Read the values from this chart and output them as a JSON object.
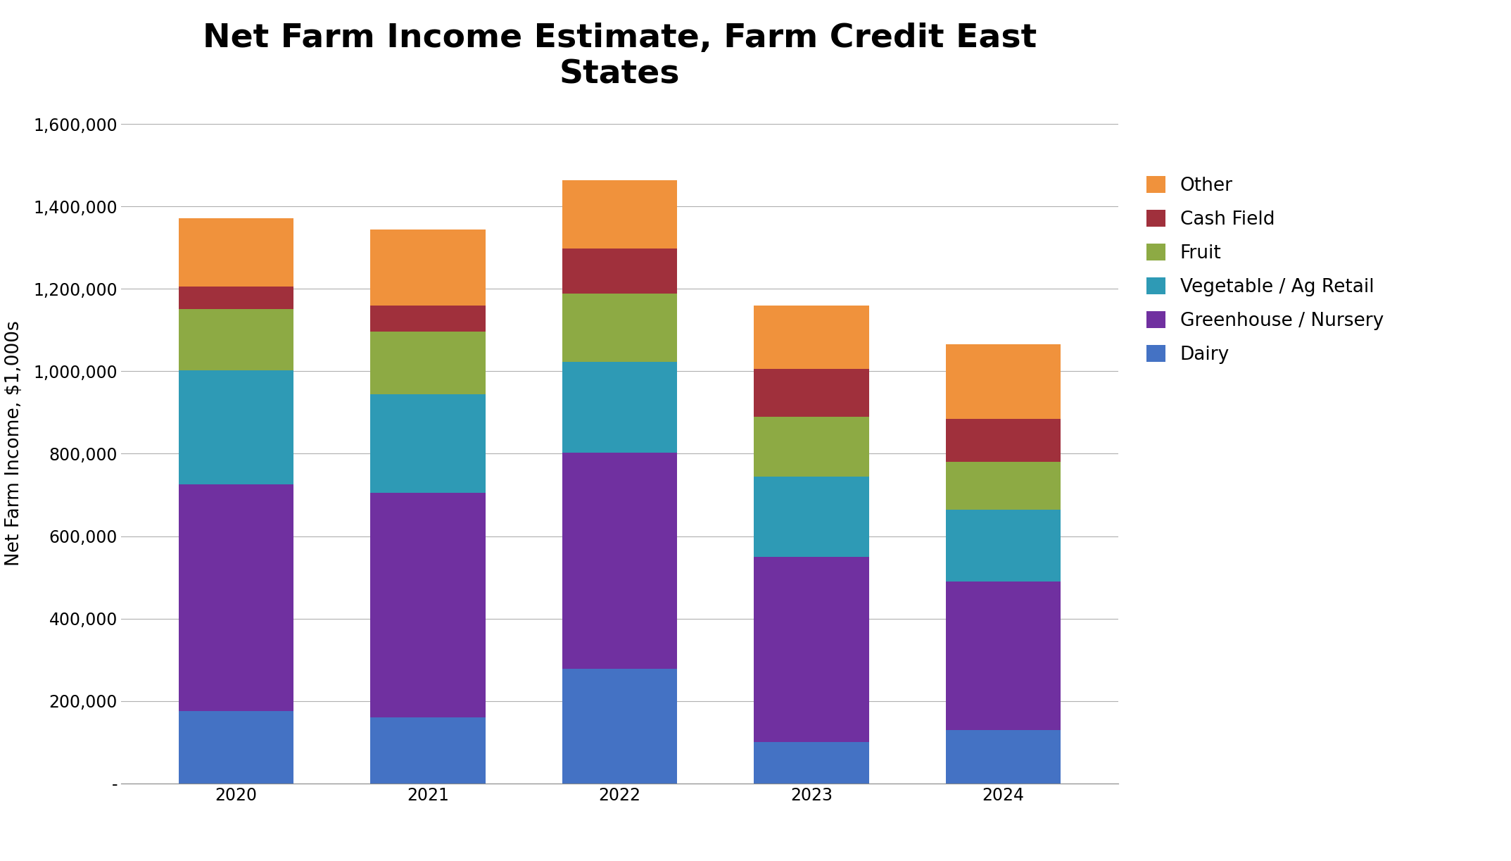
{
  "title": "Net Farm Income Estimate, Farm Credit East\nStates",
  "ylabel": "Net Farm Income, $1,000s",
  "years": [
    "2020",
    "2021",
    "2022",
    "2023",
    "2024"
  ],
  "categories": [
    "Dairy",
    "Greenhouse / Nursery",
    "Vegetable / Ag Retail",
    "Fruit",
    "Cash Field",
    "Other"
  ],
  "colors": [
    "#4472C4",
    "#7030A0",
    "#2E9AB5",
    "#8DAA44",
    "#A0303C",
    "#F0923C"
  ],
  "values": {
    "Dairy": [
      175000,
      160000,
      278000,
      100000,
      130000
    ],
    "Greenhouse / Nursery": [
      550000,
      545000,
      525000,
      450000,
      360000
    ],
    "Vegetable / Ag Retail": [
      278000,
      240000,
      220000,
      195000,
      175000
    ],
    "Fruit": [
      148000,
      152000,
      165000,
      145000,
      115000
    ],
    "Cash Field": [
      55000,
      62000,
      110000,
      115000,
      105000
    ],
    "Other": [
      165000,
      185000,
      165000,
      155000,
      180000
    ]
  },
  "ylim": [
    0,
    1650000
  ],
  "yticks": [
    0,
    200000,
    400000,
    600000,
    800000,
    1000000,
    1200000,
    1400000,
    1600000
  ],
  "ytick_labels": [
    "-",
    "200,000",
    "400,000",
    "600,000",
    "800,000",
    "1,000,000",
    "1,200,000",
    "1,400,000",
    "1,600,000"
  ],
  "figsize": [
    21.47,
    12.23
  ],
  "dpi": 100,
  "bar_width": 0.6,
  "title_fontsize": 34,
  "axis_label_fontsize": 19,
  "tick_fontsize": 17,
  "legend_fontsize": 19
}
